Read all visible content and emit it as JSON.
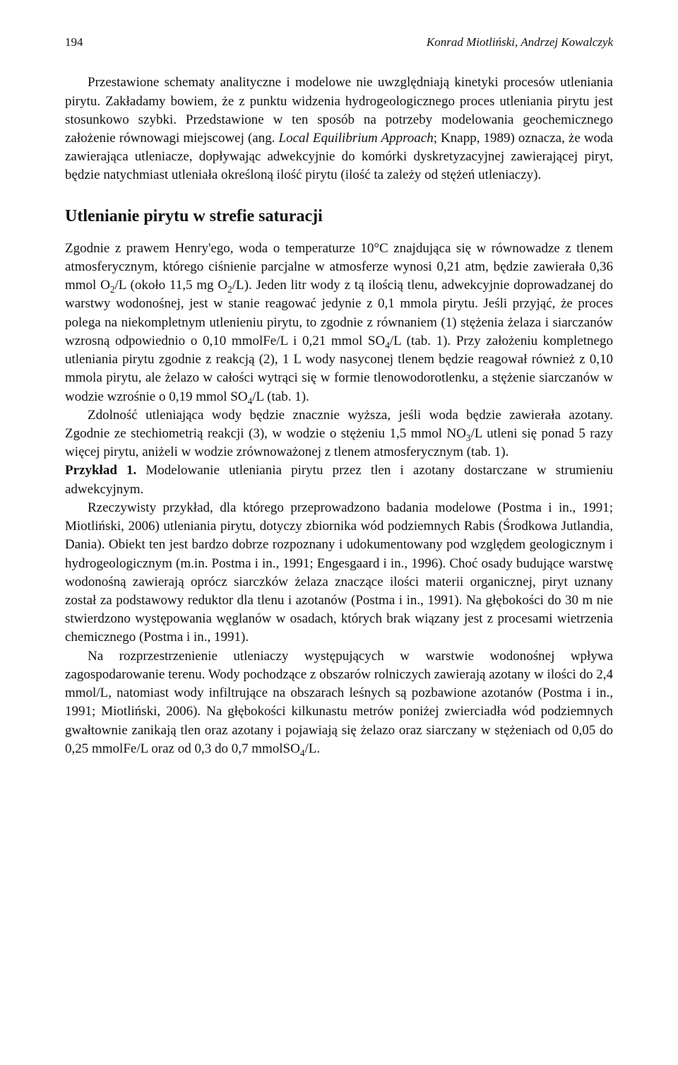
{
  "header": {
    "page_number": "194",
    "running_head": "Konrad Miotliński, Andrzej Kowalczyk"
  },
  "paragraphs": {
    "p1": "Przestawione schematy analityczne i modelowe nie uwzględniają kinetyki procesów utleniania pirytu. Zakładamy bowiem, że z punktu widzenia hydrogeologicznego proces utleniania pirytu jest stosunkowo szybki. Przedstawione w ten sposób na potrzeby modelowania geochemicznego założenie równowagi miejscowej (ang. ",
    "p1_italic": "Local Equilibrium Approach",
    "p1_tail": "; Knapp, 1989) oznacza, że woda zawierająca utleniacze, dopływając adwekcyjnie do komórki dyskretyzacyjnej zawierającej piryt, będzie natychmiast utleniała określoną ilość pirytu (ilość ta zależy od stężeń utleniaczy).",
    "section_title": "Utlenianie pirytu w strefie saturacji",
    "p2a": "Zgodnie z prawem Henry'ego, woda o temperaturze 10°C znajdująca się w równowadze z tlenem atmosferycznym, którego ciśnienie parcjalne w atmosferze wynosi 0,21 atm, będzie zawierała 0,36 mmol O",
    "p2a_sub1": "2",
    "p2b": "/L (około 11,5 mg O",
    "p2b_sub1": "2",
    "p2c": "/L). Jeden litr wody z tą ilością tlenu, adwekcyjnie doprowadzanej do warstwy wodonośnej, jest w stanie reagować jedynie z 0,1 mmola pirytu. Jeśli przyjąć, że proces polega na niekompletnym utlenieniu pirytu, to zgodnie z równaniem (1) stężenia żelaza i siarczanów wzrosną odpowiednio o 0,10 mmolFe/L i 0,21 mmol SO",
    "p2c_sub1": "4",
    "p2d": "/L (tab. 1). Przy założeniu kompletnego utleniania pirytu zgodnie z reakcją (2), 1 L wody nasyconej tlenem będzie reagował również z 0,10 mmola pirytu, ale żelazo w całości wytrąci się w formie tlenowodorotlenku, a stężenie siarczanów w wodzie wzrośnie o 0,19 mmol SO",
    "p2d_sub1": "4",
    "p2e": "/L (tab. 1).",
    "p3a": "Zdolność utleniająca wody będzie znacznie wyższa, jeśli woda będzie zawierała azotany. Zgodnie ze stechiometrią reakcji (3), w wodzie o stężeniu 1,5 mmol NO",
    "p3a_sub1": "3",
    "p3b": "/L utleni się ponad 5 razy więcej pirytu, aniżeli w wodzie zrównoważonej z tlenem atmosferycznym (tab. 1).",
    "p4_bold": "Przykład 1.",
    "p4": " Modelowanie utleniania pirytu przez tlen i azotany dostarczane w strumieniu adwekcyjnym.",
    "p5": "Rzeczywisty przykład, dla którego przeprowadzono badania modelowe (Postma i in., 1991; Miotliński, 2006) utleniania pirytu, dotyczy zbiornika wód podziemnych Rabis (Środkowa Jutlandia, Dania). Obiekt ten jest bardzo dobrze rozpoznany i udokumentowany pod względem geologicznym i hydrogeologicznym (m.in. Postma i in., 1991; Engesgaard i in., 1996). Choć osady budujące warstwę wodonośną zawierają oprócz siarczków żelaza znaczące ilości materii organicznej, piryt uznany został za podstawowy reduktor dla tlenu i azotanów (Postma i in., 1991). Na głębokości do 30 m nie stwierdzono występowania węglanów w osadach, których brak wiązany jest z procesami wietrzenia chemicznego (Postma i in., 1991).",
    "p6a": "Na rozprzestrzenienie utleniaczy występujących w warstwie wodonośnej wpływa zagospodarowanie terenu. Wody pochodzące z obszarów rolniczych zawierają azotany w ilości do 2,4 mmol/L, natomiast wody infiltrujące na obszarach leśnych są pozbawione azotanów (Postma i in., 1991; Miotliński, 2006). Na głębokości kilkunastu metrów poniżej zwierciadła wód podziemnych gwałtownie zanikają tlen oraz azotany i pojawiają się żelazo oraz siarczany w stężeniach od 0,05 do 0,25 mmolFe/L oraz od 0,3 do 0,7 mmolSO",
    "p6a_sub1": "4",
    "p6b": "/L."
  }
}
